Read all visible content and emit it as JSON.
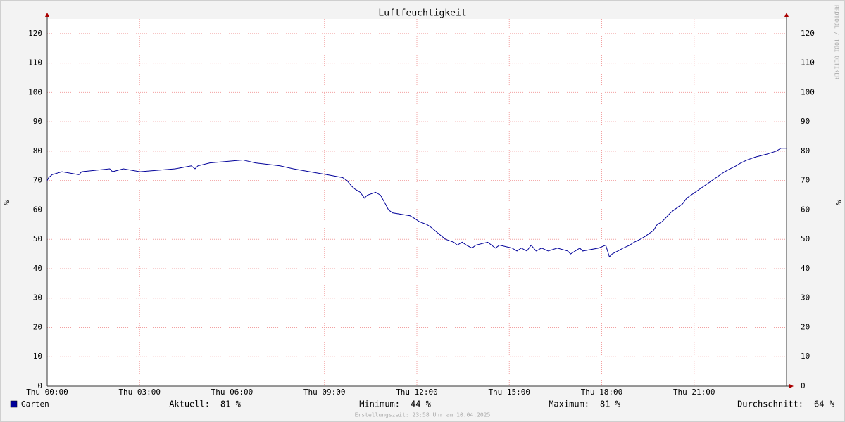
{
  "chart_data": {
    "type": "line",
    "title": "Luftfeuchtigkeit",
    "y_label": "%",
    "watermark": "RRDTOOL / TOBI OETIKER",
    "footer": "Erstellungszeit: 23:58 Uhr am 10.04.2025",
    "x": [
      0,
      0.05,
      0.16,
      0.48,
      1.03,
      1.12,
      2.03,
      2.12,
      2.47,
      3.01,
      4.16,
      4.68,
      4.8,
      4.89,
      5.28,
      6.35,
      6.76,
      7.56,
      7.99,
      8.52,
      9.09,
      9.59,
      9.73,
      9.89,
      10.0,
      10.16,
      10.3,
      10.39,
      10.66,
      10.82,
      10.98,
      11.08,
      11.21,
      11.78,
      11.94,
      12.08,
      12.33,
      12.47,
      12.58,
      12.81,
      12.93,
      13.2,
      13.31,
      13.47,
      13.61,
      13.79,
      13.91,
      14.3,
      14.55,
      14.68,
      15.09,
      15.25,
      15.39,
      15.57,
      15.71,
      15.87,
      16.05,
      16.26,
      16.56,
      16.9,
      16.99,
      17.29,
      17.38,
      17.9,
      18.13,
      18.25,
      18.34,
      18.52,
      18.7,
      18.91,
      19.05,
      19.25,
      19.41,
      19.68,
      19.8,
      19.96,
      20.05,
      20.23,
      20.35,
      20.62,
      20.76,
      21.99,
      22.17,
      22.36,
      22.52,
      22.72,
      22.99,
      23.36,
      23.66,
      23.82,
      24
    ],
    "series": [
      {
        "name": "Garten",
        "color": "#000099",
        "values": [
          70,
          71,
          72,
          73,
          72,
          73,
          74,
          73,
          74,
          73,
          74,
          75,
          74,
          75,
          76,
          77,
          76,
          75,
          74,
          73,
          72,
          71,
          70,
          68,
          67,
          66,
          64,
          65,
          66,
          65,
          62,
          60,
          59,
          58,
          57,
          56,
          55,
          54,
          53,
          51,
          50,
          49,
          48,
          49,
          48,
          47,
          48,
          49,
          47,
          48,
          47,
          46,
          47,
          46,
          48,
          46,
          47,
          46,
          47,
          46,
          45,
          47,
          46,
          47,
          48,
          44,
          45,
          46,
          47,
          48,
          49,
          50,
          51,
          53,
          55,
          56,
          57,
          59,
          60,
          62,
          64,
          73,
          74,
          75,
          76,
          77,
          78,
          79,
          80,
          81,
          81
        ]
      }
    ],
    "xlim": [
      0,
      24
    ],
    "ylim": [
      0,
      125
    ],
    "xticks": [
      {
        "value": 0,
        "label": "Thu 00:00"
      },
      {
        "value": 3,
        "label": "Thu 03:00"
      },
      {
        "value": 6,
        "label": "Thu 06:00"
      },
      {
        "value": 9,
        "label": "Thu 09:00"
      },
      {
        "value": 12,
        "label": "Thu 12:00"
      },
      {
        "value": 15,
        "label": "Thu 15:00"
      },
      {
        "value": 18,
        "label": "Thu 18:00"
      },
      {
        "value": 21,
        "label": "Thu 21:00"
      }
    ],
    "yticks": [
      0,
      10,
      20,
      30,
      40,
      50,
      60,
      70,
      80,
      90,
      100,
      110,
      120
    ],
    "grid": true,
    "stats": {
      "labels": [
        "Aktuell:",
        "Minimum:",
        "Maximum:",
        "Durchschnitt:"
      ],
      "values": [
        81,
        44,
        81,
        64
      ],
      "value_labels": [
        "81 %",
        "44 %",
        "81 %",
        "64 %"
      ]
    }
  }
}
